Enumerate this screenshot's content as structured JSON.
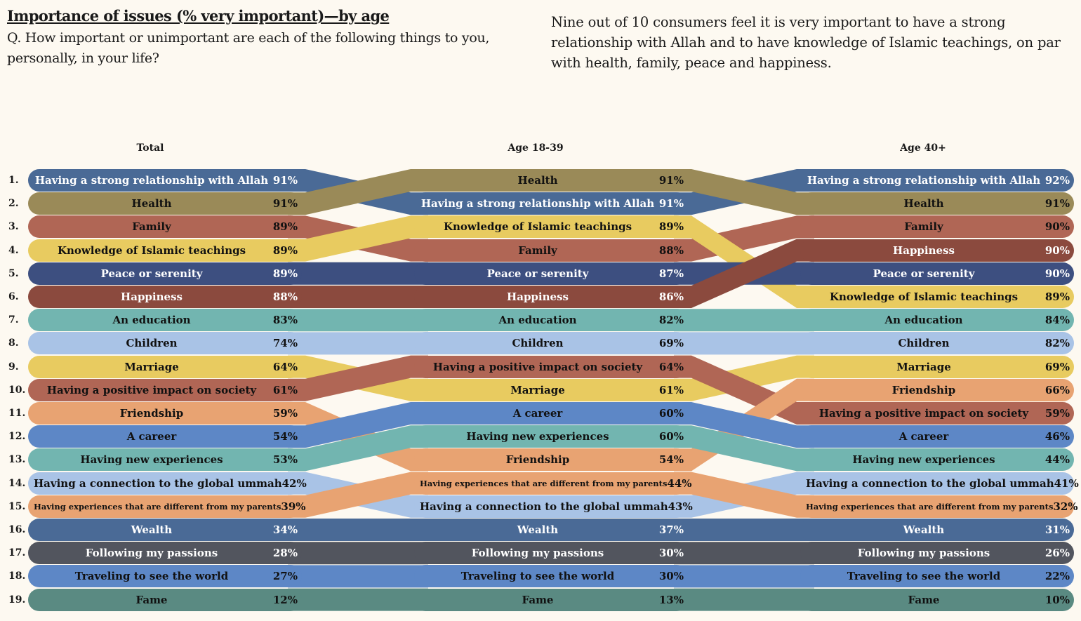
{
  "header": {
    "title": "Importance of issues (% very important)—by age",
    "question": "Q. How important or unimportant are each of the following things to you, personally, in your life?",
    "note": "Nine out of 10 consumers feel it is very important to have a strong relationship with Allah and to have knowledge of Islamic teachings, on par with health, family, peace and happiness."
  },
  "chart_data": {
    "type": "bump",
    "columns": [
      "Total",
      "Age 18-39",
      "Age 40+"
    ],
    "ranks": [
      "1.",
      "2.",
      "3.",
      "4.",
      "5.",
      "6.",
      "7.",
      "8.",
      "9.",
      "10.",
      "11.",
      "12.",
      "13.",
      "14.",
      "15.",
      "16.",
      "17.",
      "18.",
      "19."
    ],
    "items": [
      {
        "name": "Having a strong relationship with Allah",
        "color": "#4a6a96",
        "text": "#ffffff",
        "values": [
          "91%",
          "91%",
          "92%"
        ]
      },
      {
        "name": "Health",
        "color": "#9a8a58",
        "text": "#111111",
        "values": [
          "91%",
          "91%",
          "91%"
        ]
      },
      {
        "name": "Family",
        "color": "#b06655",
        "text": "#111111",
        "values": [
          "89%",
          "88%",
          "90%"
        ]
      },
      {
        "name": "Knowledge of Islamic teachings",
        "color": "#e8cb60",
        "text": "#111111",
        "values": [
          "89%",
          "89%",
          "89%"
        ]
      },
      {
        "name": "Peace or serenity",
        "color": "#3d4f80",
        "text": "#ffffff",
        "values": [
          "89%",
          "87%",
          "90%"
        ]
      },
      {
        "name": "Happiness",
        "color": "#8b4a3e",
        "text": "#ffffff",
        "values": [
          "88%",
          "86%",
          "90%"
        ]
      },
      {
        "name": "An education",
        "color": "#72b5b0",
        "text": "#111111",
        "values": [
          "83%",
          "82%",
          "84%"
        ]
      },
      {
        "name": "Children",
        "color": "#a9c3e6",
        "text": "#111111",
        "values": [
          "74%",
          "69%",
          "82%"
        ]
      },
      {
        "name": "Marriage",
        "color": "#e8cb60",
        "text": "#111111",
        "values": [
          "64%",
          "61%",
          "69%"
        ]
      },
      {
        "name": "Having a positive impact on society",
        "color": "#b06655",
        "text": "#111111",
        "values": [
          "61%",
          "64%",
          "59%"
        ]
      },
      {
        "name": "Friendship",
        "color": "#e8a372",
        "text": "#111111",
        "values": [
          "59%",
          "54%",
          "66%"
        ]
      },
      {
        "name": "A career",
        "color": "#5d87c6",
        "text": "#111111",
        "values": [
          "54%",
          "60%",
          "46%"
        ]
      },
      {
        "name": "Having new experiences",
        "color": "#72b5b0",
        "text": "#111111",
        "values": [
          "53%",
          "60%",
          "44%"
        ]
      },
      {
        "name": "Having a connection to the global ummah",
        "color": "#a9c3e6",
        "text": "#111111",
        "values": [
          "42%",
          "43%",
          "41%"
        ]
      },
      {
        "name": "Having experiences that are different from my parents",
        "color": "#e8a372",
        "text": "#111111",
        "values": [
          "39%",
          "44%",
          "32%"
        ]
      },
      {
        "name": "Wealth",
        "color": "#4a6a96",
        "text": "#ffffff",
        "values": [
          "34%",
          "37%",
          "31%"
        ]
      },
      {
        "name": "Following my passions",
        "color": "#52555e",
        "text": "#ffffff",
        "values": [
          "28%",
          "30%",
          "26%"
        ]
      },
      {
        "name": "Traveling to see the world",
        "color": "#5d87c6",
        "text": "#111111",
        "values": [
          "27%",
          "30%",
          "22%"
        ]
      },
      {
        "name": "Fame",
        "color": "#5a8a82",
        "text": "#111111",
        "values": [
          "12%",
          "13%",
          "10%"
        ]
      }
    ],
    "orders": [
      [
        0,
        1,
        2,
        3,
        4,
        5,
        6,
        7,
        8,
        9,
        10,
        11,
        12,
        13,
        14,
        15,
        16,
        17,
        18
      ],
      [
        1,
        0,
        3,
        2,
        4,
        5,
        6,
        7,
        9,
        8,
        11,
        12,
        10,
        14,
        13,
        15,
        16,
        17,
        18
      ],
      [
        0,
        1,
        2,
        5,
        4,
        3,
        6,
        7,
        8,
        10,
        9,
        11,
        12,
        13,
        14,
        15,
        16,
        17,
        18
      ]
    ]
  }
}
